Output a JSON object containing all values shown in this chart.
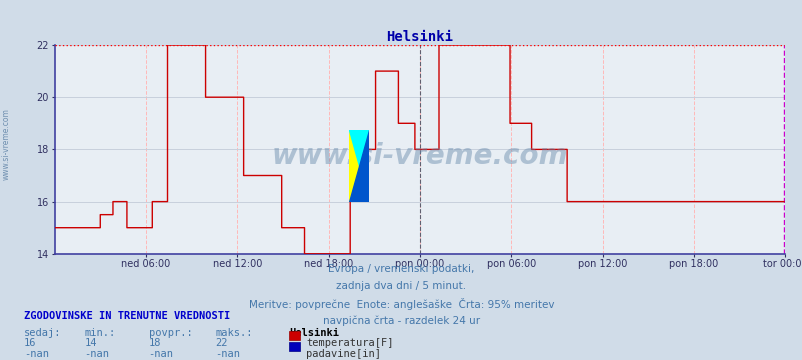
{
  "title": "Helsinki",
  "bg_color": "#d0dce8",
  "plot_bg_color": "#e8eef4",
  "grid_color_minor": "#c8d0dc",
  "grid_color_h": "#ffb8b8",
  "line_color": "#cc0000",
  "vline_color": "#606070",
  "top_line_color": "#ff0000",
  "right_line_color": "#cc00cc",
  "axis_color": "#4040a0",
  "ylim": [
    14,
    22
  ],
  "yticks": [
    14,
    16,
    18,
    20,
    22
  ],
  "x_tick_labels": [
    "ned 06:00",
    "ned 12:00",
    "ned 18:00",
    "pon 00:00",
    "pon 06:00",
    "pon 12:00",
    "pon 18:00",
    "tor 00:00"
  ],
  "x_tick_positions": [
    72,
    144,
    216,
    288,
    360,
    432,
    504,
    576
  ],
  "total_points": 576,
  "watermark": "www.si-vreme.com",
  "info_line1": "Evropa / vremenski podatki,",
  "info_line2": "zadnja dva dni / 5 minut.",
  "info_line3": "Meritve: povprečne  Enote: anglešaške  Črta: 95% meritev",
  "info_line4": "navpična črta - razdelek 24 ur",
  "bottom_title": "ZGODOVINSKE IN TRENUTNE VREDNOSTI",
  "col_headers": [
    "sedaj:",
    "min.:",
    "povpr.:",
    "maks.:"
  ],
  "col_values": [
    "16",
    "14",
    "18",
    "22"
  ],
  "col_values2": [
    "-nan",
    "-nan",
    "-nan",
    "-nan"
  ],
  "legend_title": "Helsinki",
  "legend_items": [
    {
      "label": "temperatura[F]",
      "color": "#cc0000"
    },
    {
      "label": "padavine[in]",
      "color": "#0000bb"
    }
  ],
  "temp_data": [
    [
      0,
      15
    ],
    [
      24,
      15
    ],
    [
      25,
      15
    ],
    [
      35,
      15
    ],
    [
      36,
      15.5
    ],
    [
      45,
      15.5
    ],
    [
      46,
      16
    ],
    [
      56,
      16
    ],
    [
      57,
      15
    ],
    [
      76,
      15
    ],
    [
      77,
      16
    ],
    [
      88,
      16
    ],
    [
      89,
      22
    ],
    [
      118,
      22
    ],
    [
      119,
      20
    ],
    [
      148,
      20
    ],
    [
      149,
      17
    ],
    [
      178,
      17
    ],
    [
      179,
      15
    ],
    [
      196,
      15
    ],
    [
      197,
      14
    ],
    [
      232,
      14
    ],
    [
      233,
      18
    ],
    [
      252,
      18
    ],
    [
      253,
      21
    ],
    [
      270,
      21
    ],
    [
      271,
      19
    ],
    [
      283,
      19
    ],
    [
      284,
      18
    ],
    [
      302,
      18
    ],
    [
      303,
      22
    ],
    [
      358,
      22
    ],
    [
      359,
      19
    ],
    [
      375,
      19
    ],
    [
      376,
      18
    ],
    [
      403,
      18
    ],
    [
      404,
      16
    ],
    [
      575,
      16
    ]
  ],
  "vline_x": 288
}
